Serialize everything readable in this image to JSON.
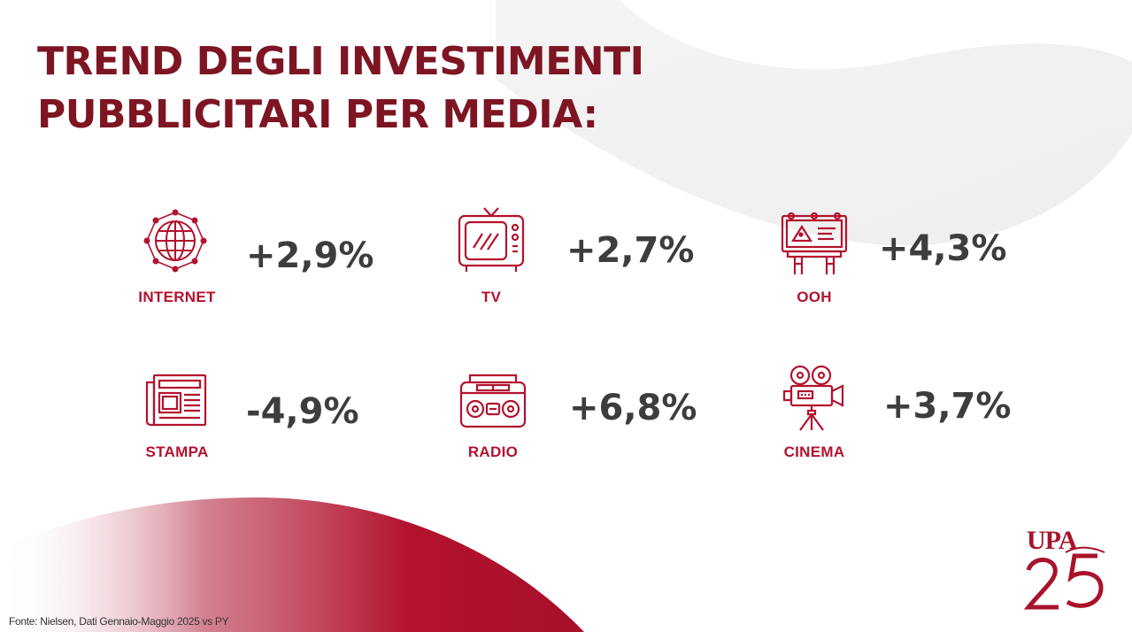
{
  "title": {
    "line1": "TREND DEGLI INVESTIMENTI",
    "line2": "PUBBLICITARI PER MEDIA:"
  },
  "media": [
    {
      "label": "INTERNET",
      "value": "+2,9%",
      "icon": "globe-icon"
    },
    {
      "label": "TV",
      "value": "+2,7%",
      "icon": "tv-icon"
    },
    {
      "label": "OOH",
      "value": "+4,3%",
      "icon": "billboard-icon"
    },
    {
      "label": "STAMPA",
      "value": "-4,9%",
      "icon": "newspaper-icon"
    },
    {
      "label": "RADIO",
      "value": "+6,8%",
      "icon": "radio-icon"
    },
    {
      "label": "CINEMA",
      "value": "+3,7%",
      "icon": "film-camera-icon"
    }
  ],
  "footer": {
    "source": "Fonte: Nielsen, Dati Gennaio-Maggio 2025 vs PY"
  },
  "logo": {
    "text": "UPA",
    "number": "25"
  },
  "colors": {
    "title": "#7d1523",
    "accent": "#b3122e",
    "value": "#3d3d3d"
  }
}
